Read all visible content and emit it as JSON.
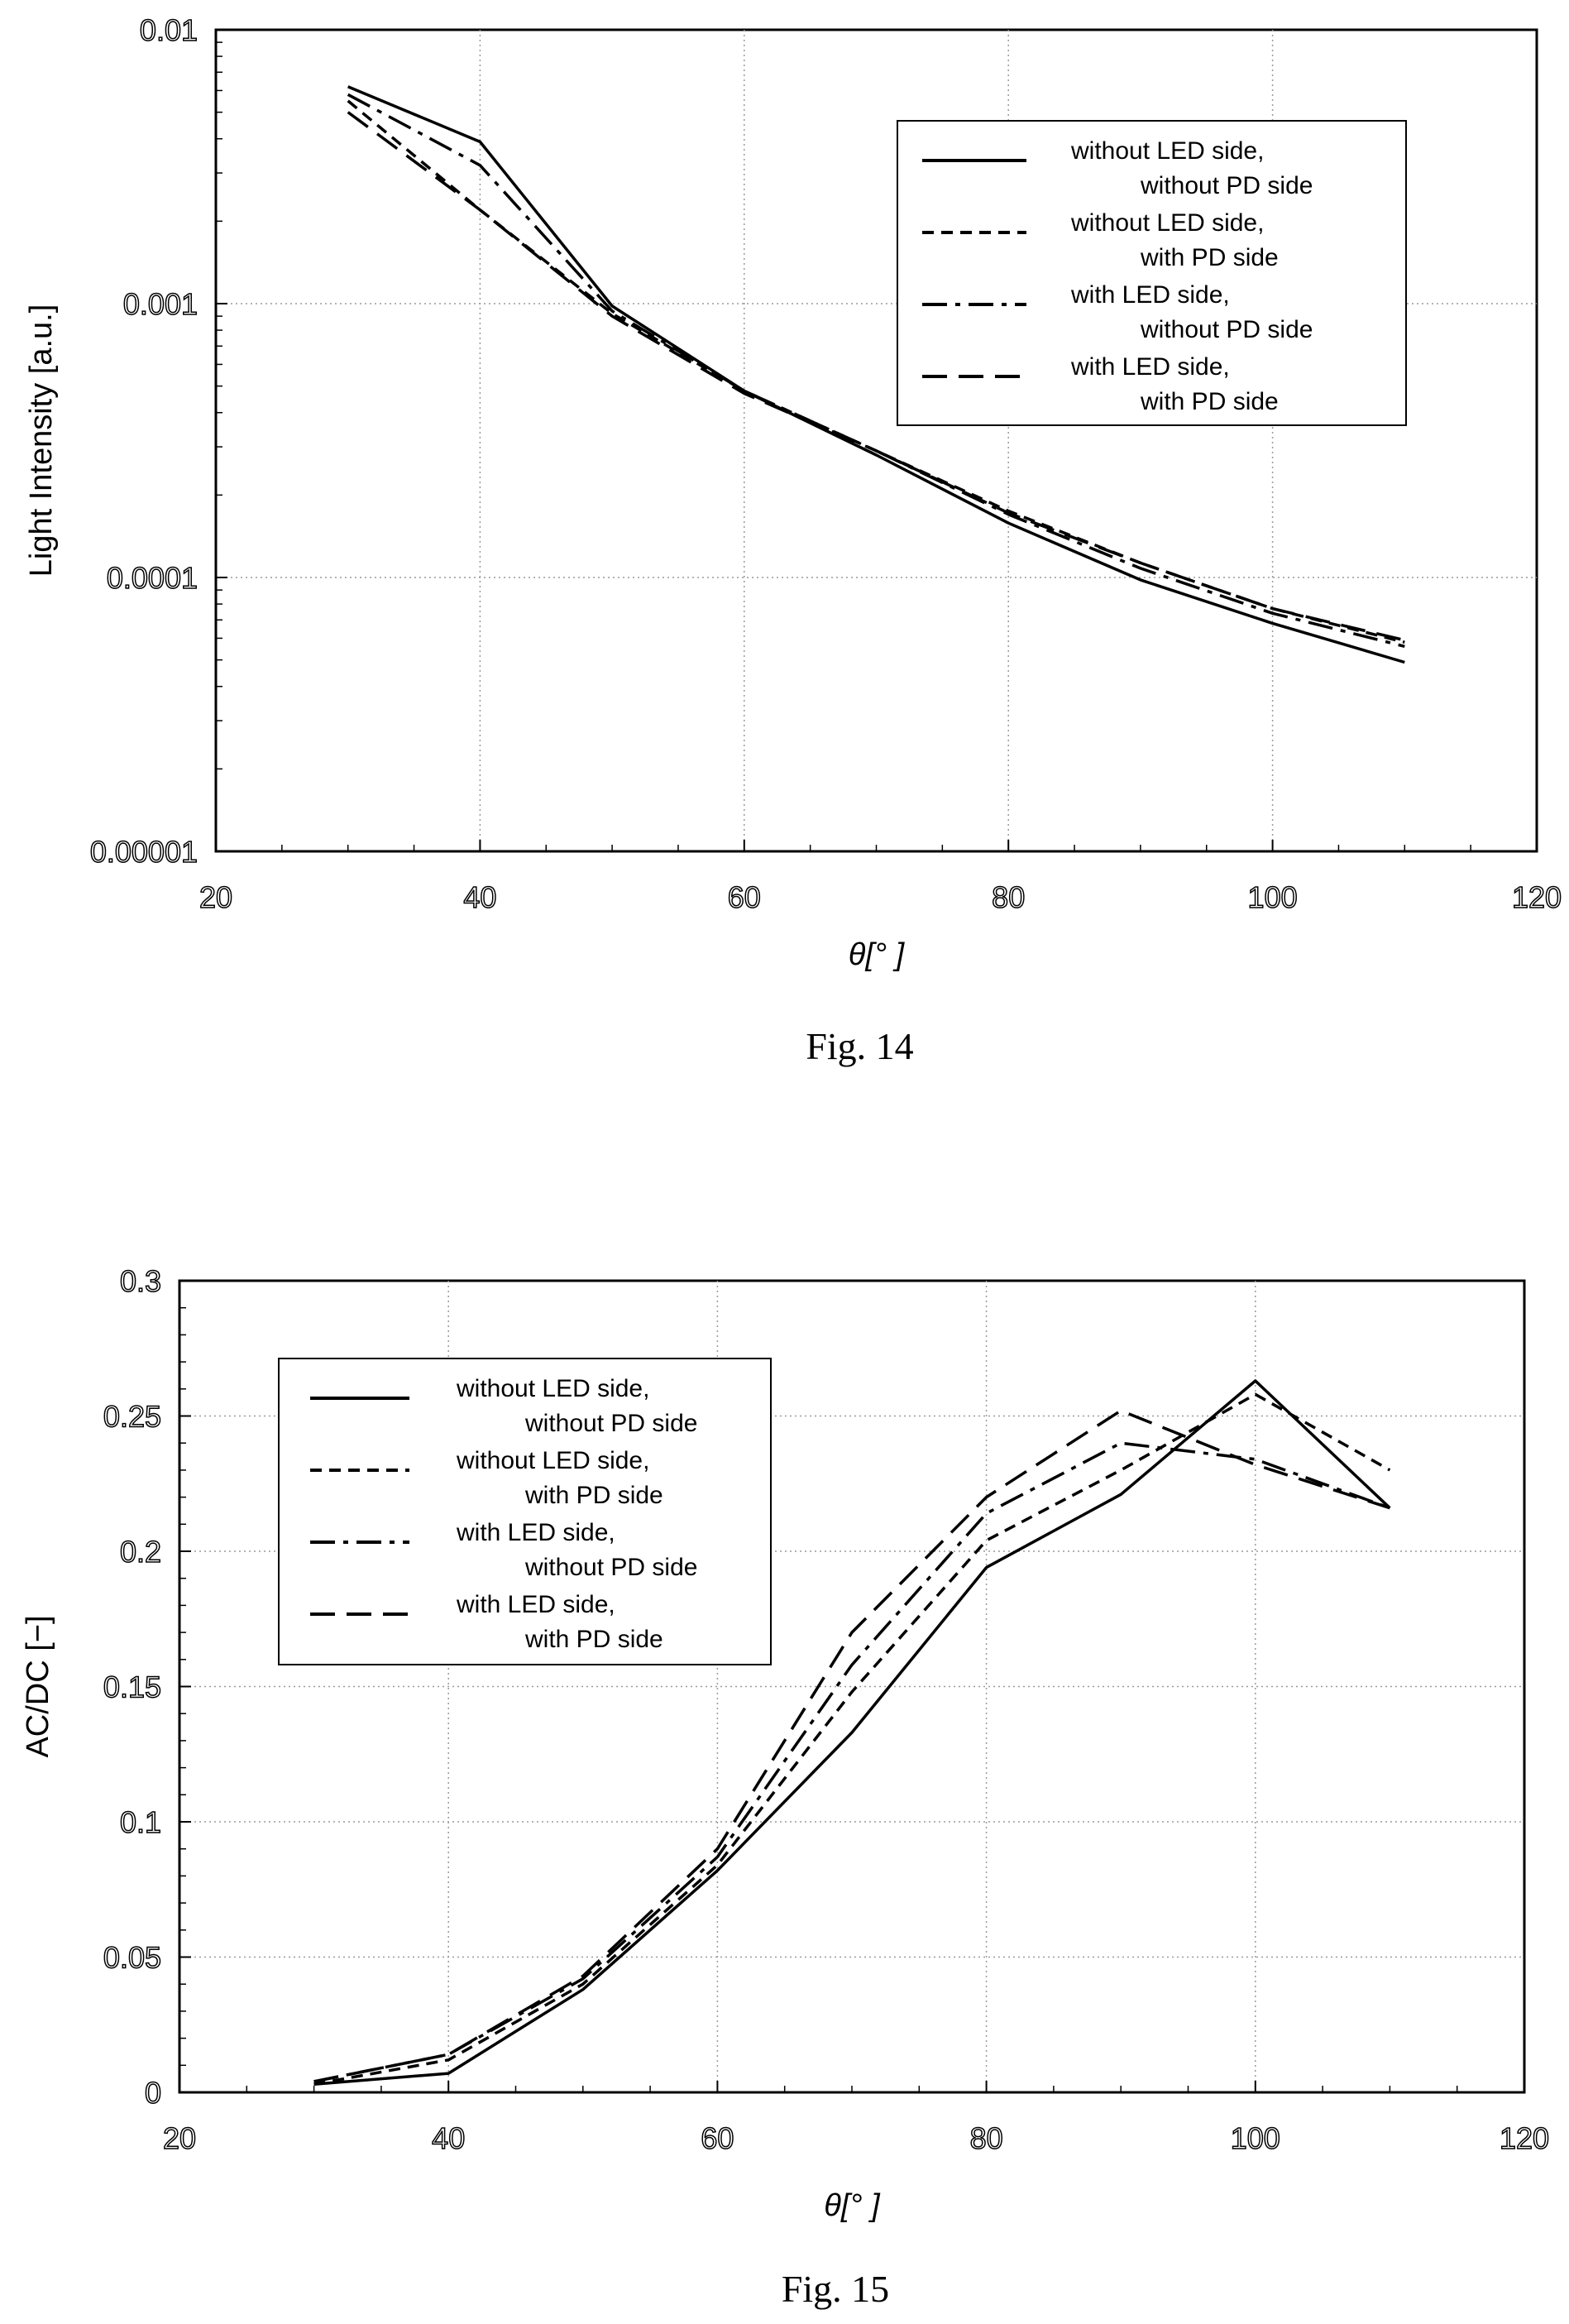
{
  "chart_data": [
    {
      "type": "line",
      "caption": "Fig. 14",
      "xlabel": "θ[°  ]",
      "ylabel": "Light Intensity [a.u.]",
      "xlim": [
        20,
        120
      ],
      "ylim": [
        1e-05,
        0.01
      ],
      "yscale": "log",
      "grid": true,
      "legend_position": "top-right",
      "x_ticks": [
        "20",
        "40",
        "60",
        "80",
        "100",
        "120"
      ],
      "y_ticks": [
        "0.01",
        "0.001",
        "0.0001",
        "0.00001"
      ],
      "x": [
        30,
        40,
        50,
        60,
        70,
        80,
        90,
        100,
        110
      ],
      "series": [
        {
          "name_line1": "without LED side,",
          "name_line2": "without PD side",
          "dash": "none",
          "values": [
            0.0062,
            0.0039,
            0.00098,
            0.00048,
            0.00028,
            0.000158,
            9.8e-05,
            6.8e-05,
            4.9e-05
          ]
        },
        {
          "name_line1": "without LED side,",
          "name_line2": "with PD side",
          "dash": "14,9",
          "values": [
            0.0055,
            0.0022,
            0.00092,
            0.00048,
            0.00029,
            0.000175,
            0.000113,
            7.7e-05,
            5.8e-05
          ]
        },
        {
          "name_line1": "with LED side,",
          "name_line2": "without PD side",
          "dash": "30,10,6,10",
          "values": [
            0.0058,
            0.0032,
            0.00094,
            0.00048,
            0.00029,
            0.00017,
            0.000108,
            7.4e-05,
            5.6e-05
          ]
        },
        {
          "name_line1": "with LED side,",
          "name_line2": "with PD side",
          "dash": "30,14",
          "values": [
            0.005,
            0.0022,
            0.0009,
            0.00047,
            0.00029,
            0.000172,
            0.000113,
            7.7e-05,
            5.9e-05
          ]
        }
      ]
    },
    {
      "type": "line",
      "caption": "Fig. 15",
      "xlabel": "θ[°  ]",
      "ylabel": "AC/DC [−]",
      "xlim": [
        20,
        120
      ],
      "ylim": [
        0,
        0.3
      ],
      "yscale": "linear",
      "grid": true,
      "legend_position": "top-left",
      "x_ticks": [
        "20",
        "40",
        "60",
        "80",
        "100",
        "120"
      ],
      "y_ticks": [
        "0",
        "0.05",
        "0.1",
        "0.15",
        "0.2",
        "0.25",
        "0.3"
      ],
      "x": [
        30,
        40,
        50,
        60,
        70,
        80,
        90,
        100,
        110
      ],
      "series": [
        {
          "name_line1": "without LED side,",
          "name_line2": "without PD side",
          "dash": "none",
          "values": [
            0.003,
            0.007,
            0.038,
            0.082,
            0.133,
            0.194,
            0.221,
            0.263,
            0.216
          ]
        },
        {
          "name_line1": "without LED side,",
          "name_line2": "with PD side",
          "dash": "14,9",
          "values": [
            0.003,
            0.012,
            0.04,
            0.084,
            0.148,
            0.204,
            0.23,
            0.258,
            0.23
          ]
        },
        {
          "name_line1": "with LED side,",
          "name_line2": "without PD side",
          "dash": "30,10,6,10",
          "values": [
            0.004,
            0.014,
            0.042,
            0.087,
            0.158,
            0.214,
            0.24,
            0.234,
            0.216
          ]
        },
        {
          "name_line1": "with LED side,",
          "name_line2": "with PD side",
          "dash": "30,14",
          "values": [
            0.004,
            0.014,
            0.043,
            0.09,
            0.17,
            0.22,
            0.252,
            0.232,
            0.216
          ]
        }
      ]
    }
  ]
}
